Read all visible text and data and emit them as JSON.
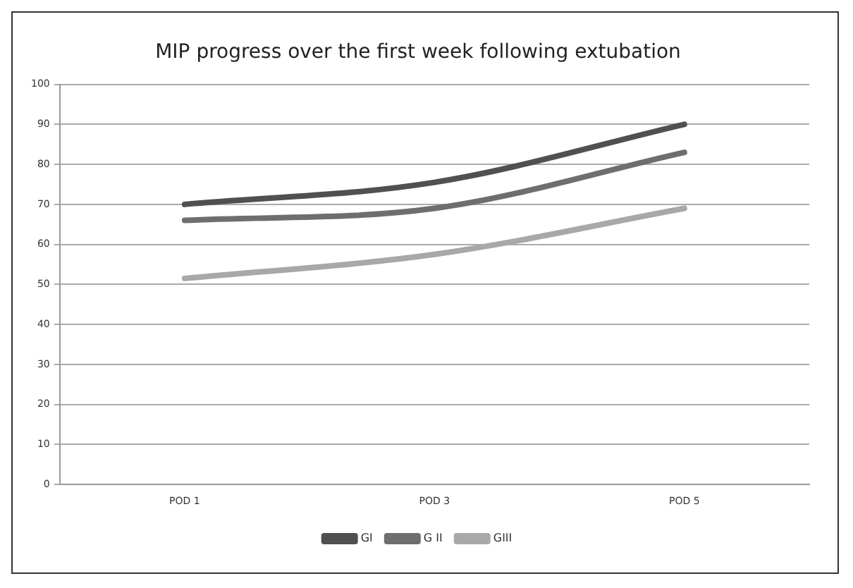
{
  "chart_data": {
    "type": "line",
    "title": "MIP progress over the first week following extubation",
    "categories": [
      "POD 1",
      "POD 3",
      "POD 5"
    ],
    "series": [
      {
        "name": "GI",
        "color": "#505050",
        "values": [
          70,
          75.5,
          90
        ]
      },
      {
        "name": "G II",
        "color": "#6e6e6e",
        "values": [
          66,
          69,
          83
        ]
      },
      {
        "name": "GIII",
        "color": "#a8a8a8",
        "values": [
          51.5,
          57.5,
          69
        ]
      }
    ],
    "ylim": [
      0,
      100
    ],
    "yticks": [
      0,
      10,
      20,
      30,
      40,
      50,
      60,
      70,
      80,
      90,
      100
    ],
    "grid": "y",
    "legend": "bottom",
    "marker": "none",
    "line_style": "solid"
  }
}
